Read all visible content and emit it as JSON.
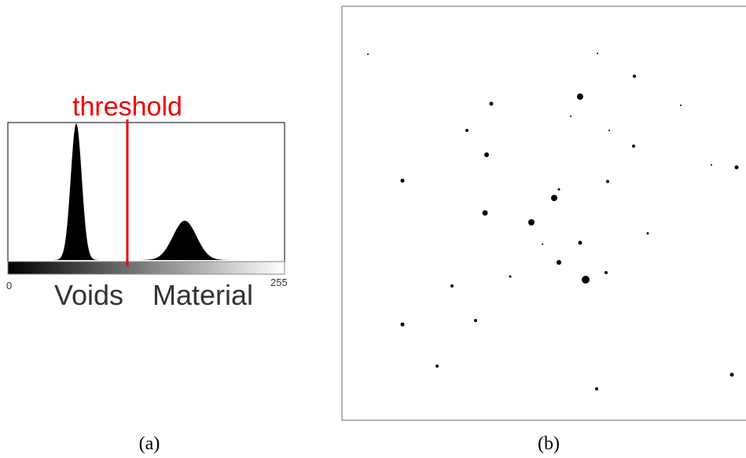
{
  "panels": {
    "a": {
      "threshold_label": "threshold",
      "axis_min": "0",
      "axis_max": "255",
      "left_label": "Voids",
      "right_label": "Material",
      "caption": "(a)"
    },
    "b": {
      "caption": "(b)"
    }
  }
}
